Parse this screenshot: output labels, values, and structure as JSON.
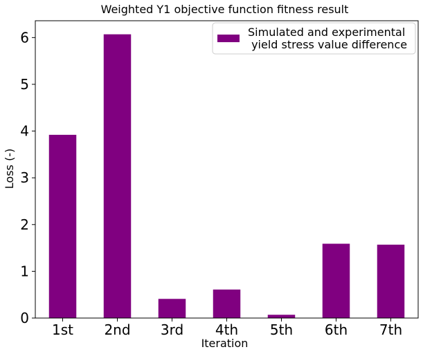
{
  "chart_data": {
    "type": "bar",
    "title": "Weighted Y1 objective function fitness result",
    "xlabel": "Iteration",
    "ylabel": "Loss (-)",
    "categories": [
      "1st",
      "2nd",
      "3rd",
      "4th",
      "5th",
      "6th",
      "7th"
    ],
    "series": [
      {
        "name": "Simulated and experimental\n yield stress value difference",
        "values": [
          3.92,
          6.07,
          0.41,
          0.61,
          0.07,
          1.59,
          1.57
        ],
        "color": "#800080"
      }
    ],
    "ylim": [
      0,
      6.36
    ],
    "yticks": [
      0,
      1,
      2,
      3,
      4,
      5,
      6
    ],
    "grid": false,
    "legend_position": "top-right"
  }
}
